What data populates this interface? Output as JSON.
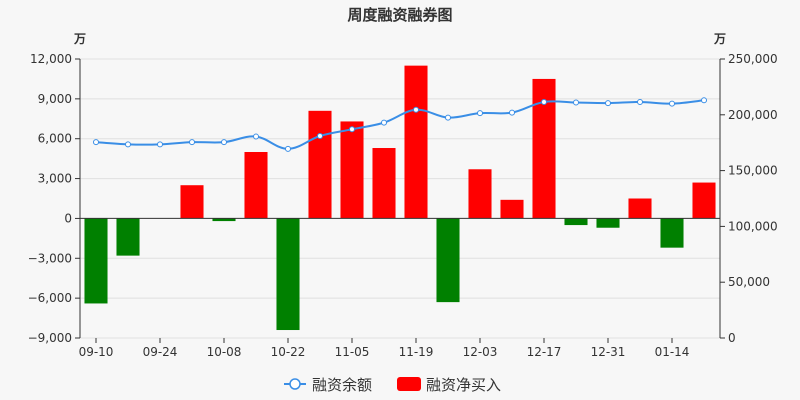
{
  "chart_data": {
    "type": "bar+line",
    "title": "周度融资融券图",
    "left_unit": "万",
    "right_unit": "万",
    "x_tick_labels": [
      "09-10",
      "09-24",
      "10-08",
      "10-22",
      "11-05",
      "11-19",
      "12-03",
      "12-17",
      "12-31",
      "01-14"
    ],
    "left_axis": {
      "ylim": [
        -9000,
        12000
      ],
      "ticks": [
        12000,
        9000,
        6000,
        3000,
        0,
        -3000,
        -6000,
        -9000
      ],
      "tick_labels": [
        "12,000",
        "9,000",
        "6,000",
        "3,000",
        "0",
        "−3,000",
        "−6,000",
        "−9,000"
      ]
    },
    "right_axis": {
      "ylim": [
        0,
        250000
      ],
      "ticks": [
        250000,
        200000,
        150000,
        100000,
        50000,
        0
      ],
      "tick_labels": [
        "250,000",
        "200,000",
        "150,000",
        "100,000",
        "50,000",
        "0"
      ]
    },
    "grid": "horizontal",
    "legend_placement": "bottom",
    "series": [
      {
        "name": "融资余额",
        "type": "line",
        "axis": "right",
        "color": "#3a8ee6",
        "values": [
          175500,
          173500,
          173500,
          175500,
          175500,
          180500,
          169500,
          181000,
          187000,
          193000,
          204500,
          197500,
          201500,
          202000,
          211500,
          211000,
          210500,
          211500,
          210000,
          213000
        ]
      },
      {
        "name": "融资净买入",
        "type": "bar",
        "axis": "left",
        "positive_color": "#ff0000",
        "negative_color": "#008000",
        "values": [
          -6400,
          -2800,
          0,
          2500,
          -200,
          5000,
          -8400,
          8100,
          7300,
          5300,
          11500,
          -6300,
          3700,
          1400,
          10500,
          -500,
          -700,
          1500,
          -2200,
          2700
        ]
      }
    ]
  }
}
